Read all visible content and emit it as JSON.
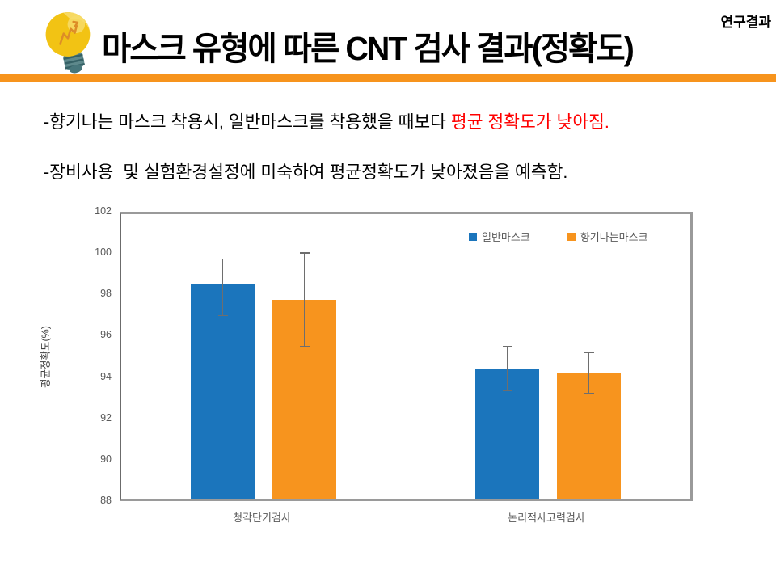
{
  "slide": {
    "badge": "연구결과",
    "title": "마스크 유형에 따른 CNT 검사 결과(정확도)",
    "accent_color": "#F7941D",
    "highlight_color": "#FF0000",
    "notes": {
      "line1_text": "-향기나는 마스크 착용시, 일반마스크를 착용했을 때보다 ",
      "line1_highlight": "평균 정확도가 낮아짐.",
      "line2_text": "-장비사용  및 실험환경설정에 미숙하여 평균정확도가 낮아졌음을 예측함."
    },
    "icons": {
      "bulb": "lightbulb-icon"
    }
  },
  "chart_data": {
    "type": "bar",
    "categories": [
      "청각단기검사",
      "논리적사고력검사"
    ],
    "series": [
      {
        "name": "일반마스크",
        "color": "#1B75BC",
        "values": [
          98.6,
          94.4
        ],
        "error_low": [
          97.0,
          93.3
        ],
        "error_high": [
          99.8,
          95.5
        ]
      },
      {
        "name": "향기나는마스크",
        "color": "#F7941E",
        "values": [
          97.8,
          94.2
        ],
        "error_low": [
          95.5,
          93.2
        ],
        "error_high": [
          100.1,
          95.2
        ]
      }
    ],
    "title": "",
    "xlabel": "",
    "ylabel": "평균정확도(%)",
    "ylim": [
      88,
      102
    ],
    "yticks": [
      88,
      90,
      92,
      94,
      96,
      98,
      100,
      102
    ],
    "grid": false,
    "legend_position": "top-right",
    "error_bars": true
  }
}
